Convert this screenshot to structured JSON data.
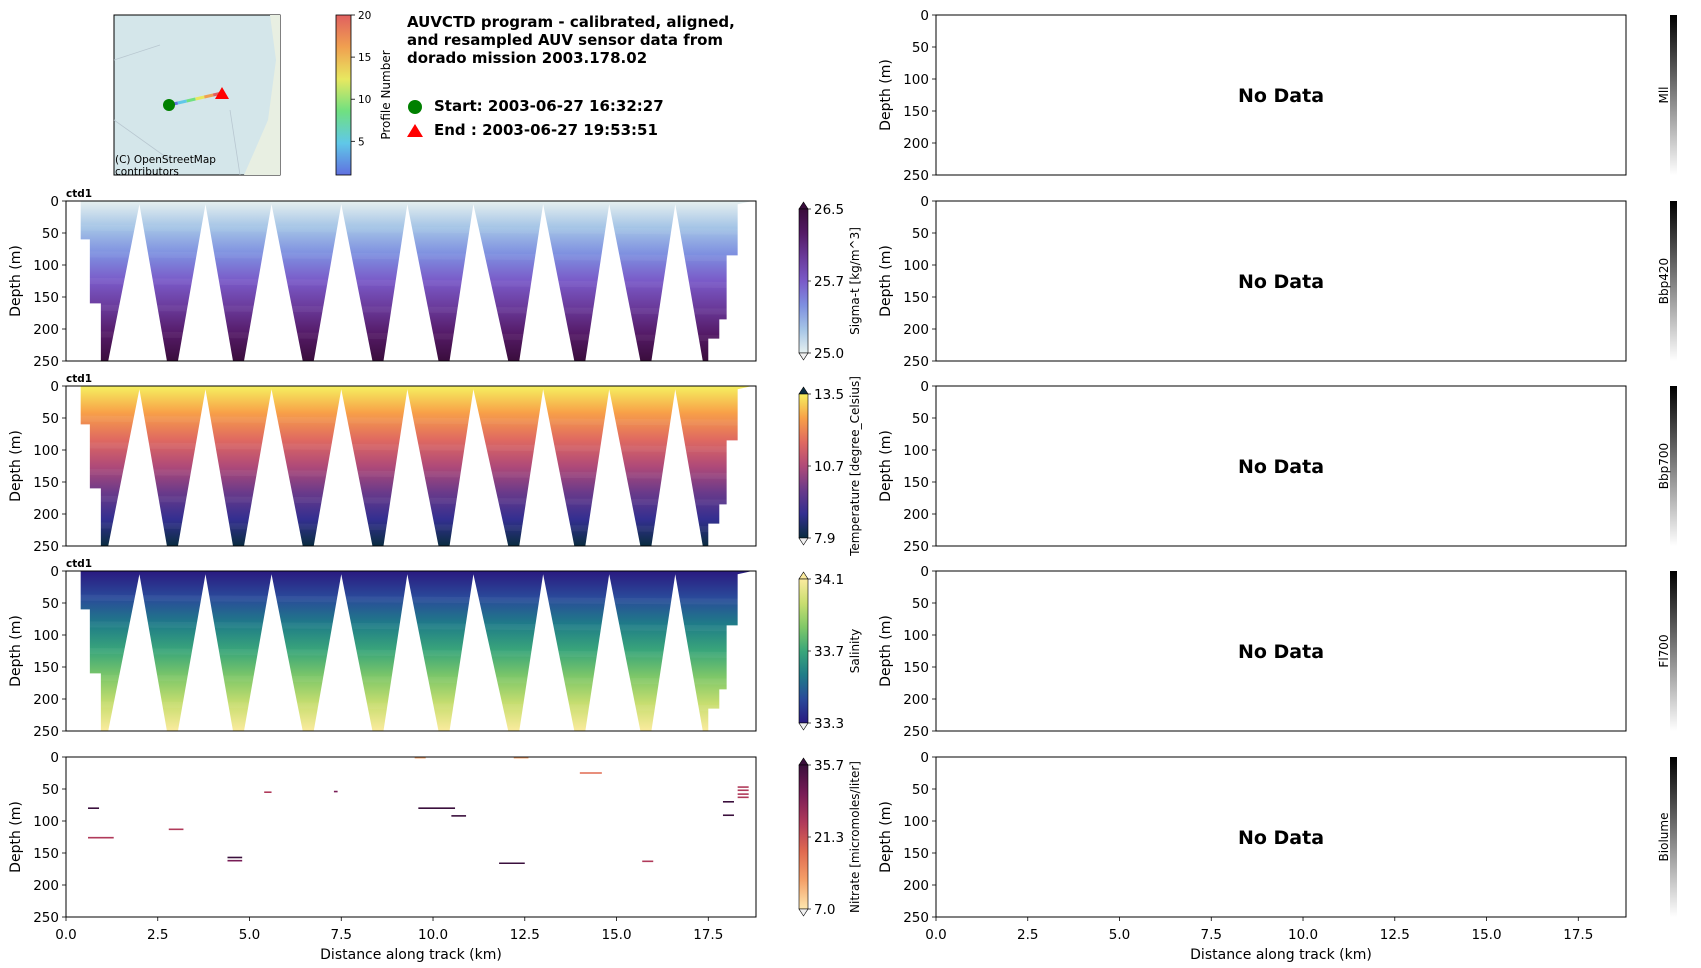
{
  "header": {
    "title_lines": [
      "AUVCTD program - calibrated, aligned,",
      "and resampled AUV sensor data from",
      "dorado mission 2003.178.02"
    ],
    "start_text": "Start: 2003-06-27 16:32:27",
    "end_text": "End  : 2003-06-27 19:53:51"
  },
  "map": {
    "attribution_lines": [
      "(C) OpenStreetMap",
      "contributors"
    ],
    "start_color": "#008000",
    "end_color": "#ff0000"
  },
  "profile_colorbar": {
    "label": "Profile Number",
    "ticks": [
      "5",
      "10",
      "15",
      "20"
    ]
  },
  "common": {
    "ylabel": "Depth (m)",
    "xlabel": "Distance along track (km)",
    "y_ticks": [
      "0",
      "50",
      "100",
      "150",
      "200",
      "250"
    ],
    "x_ticks": [
      "0.0",
      "2.5",
      "5.0",
      "7.5",
      "10.0",
      "12.5",
      "15.0",
      "17.5"
    ],
    "no_data_text": "No Data"
  },
  "chart_data": [
    {
      "type": "heatmap",
      "source": "ctd1",
      "variable": "Sigma-t [kg/m^3]",
      "xlim": [
        0,
        18.8
      ],
      "ylim": [
        250,
        0
      ],
      "colorbar_ticks": [
        "26.5",
        "25.7",
        "25.0"
      ],
      "colormap": "dense",
      "colors": [
        "#e6f0f0",
        "#a4c4e6",
        "#7e8fe0",
        "#7a5ac8",
        "#6a3a9a",
        "#541a66",
        "#3a0d3c"
      ]
    },
    {
      "type": "heatmap",
      "source": "ctd1",
      "variable": "Temperature [degree_Celsius]",
      "xlim": [
        0,
        18.8
      ],
      "ylim": [
        250,
        0
      ],
      "colorbar_ticks": [
        "13.5",
        "10.7",
        "7.9"
      ],
      "colormap": "thermal",
      "colors": [
        "#f5f060",
        "#f8a048",
        "#e06a60",
        "#b04a78",
        "#6a3a8a",
        "#332f90",
        "#0a2d40"
      ]
    },
    {
      "type": "heatmap",
      "source": "ctd1",
      "variable": "Salinity",
      "xlim": [
        0,
        18.8
      ],
      "ylim": [
        250,
        0
      ],
      "colorbar_ticks": [
        "34.1",
        "33.7",
        "33.3"
      ],
      "colormap": "haline",
      "colors": [
        "#fbeb9e",
        "#c9de70",
        "#80c868",
        "#3aa67a",
        "#1f7c88",
        "#2a4a9a",
        "#2a1a80"
      ]
    },
    {
      "type": "heatmap",
      "variable": "Nitrate [micromoles/liter]",
      "xlim": [
        0,
        18.8
      ],
      "ylim": [
        250,
        0
      ],
      "colorbar_ticks": [
        "35.7",
        "21.3",
        "7.0"
      ],
      "colormap": "matter",
      "colors": [
        "#fde8b0",
        "#f4a068",
        "#e06a50",
        "#b03a5a",
        "#781c56",
        "#3a0f3c"
      ]
    },
    {
      "type": "heatmap",
      "variable": "Mll",
      "data": "none",
      "xlim": [
        0,
        18.8
      ],
      "ylim": [
        250,
        0
      ]
    },
    {
      "type": "heatmap",
      "variable": "Bbp420",
      "data": "none",
      "xlim": [
        0,
        18.8
      ],
      "ylim": [
        250,
        0
      ]
    },
    {
      "type": "heatmap",
      "variable": "Bbp700",
      "data": "none",
      "xlim": [
        0,
        18.8
      ],
      "ylim": [
        250,
        0
      ]
    },
    {
      "type": "heatmap",
      "variable": "Fl700",
      "data": "none",
      "xlim": [
        0,
        18.8
      ],
      "ylim": [
        250,
        0
      ]
    },
    {
      "type": "heatmap",
      "variable": "Biolume",
      "data": "none",
      "xlim": [
        0,
        18.8
      ],
      "ylim": [
        250,
        0
      ]
    }
  ],
  "track": {
    "turn_x_bottom": [
      1.0,
      2.9,
      4.7,
      6.6,
      8.5,
      10.3,
      12.2,
      14.0,
      15.8,
      17.5
    ],
    "turn_x_top": [
      2.0,
      3.8,
      5.6,
      7.5,
      9.3,
      11.1,
      13.0,
      14.8,
      16.6
    ]
  },
  "nitrate_segments": [
    {
      "x0": 0.6,
      "x1": 0.9,
      "y": 80,
      "c": 5
    },
    {
      "x0": 0.6,
      "x1": 1.3,
      "y": 126,
      "c": 3
    },
    {
      "x0": 2.8,
      "x1": 3.2,
      "y": 113,
      "c": 3
    },
    {
      "x0": 4.4,
      "x1": 4.8,
      "y": 157,
      "c": 5
    },
    {
      "x0": 4.4,
      "x1": 4.8,
      "y": 162,
      "c": 4
    },
    {
      "x0": 5.4,
      "x1": 5.6,
      "y": 55,
      "c": 3
    },
    {
      "x0": 7.3,
      "x1": 7.4,
      "y": 54,
      "c": 4
    },
    {
      "x0": 9.6,
      "x1": 10.6,
      "y": 80,
      "c": 5
    },
    {
      "x0": 10.5,
      "x1": 10.9,
      "y": 92,
      "c": 5
    },
    {
      "x0": 11.8,
      "x1": 12.5,
      "y": 166,
      "c": 5
    },
    {
      "x0": 14.0,
      "x1": 14.6,
      "y": 25,
      "c": 2
    },
    {
      "x0": 15.7,
      "x1": 16.0,
      "y": 163,
      "c": 3
    },
    {
      "x0": 17.9,
      "x1": 18.2,
      "y": 70,
      "c": 5
    },
    {
      "x0": 17.9,
      "x1": 18.2,
      "y": 91,
      "c": 5
    },
    {
      "x0": 18.3,
      "x1": 18.6,
      "y": 47,
      "c": 3
    },
    {
      "x0": 18.3,
      "x1": 18.6,
      "y": 52,
      "c": 3
    },
    {
      "x0": 18.3,
      "x1": 18.6,
      "y": 58,
      "c": 3
    },
    {
      "x0": 18.3,
      "x1": 18.6,
      "y": 63,
      "c": 3
    },
    {
      "x0": 9.5,
      "x1": 9.8,
      "y": 1,
      "c": 1
    },
    {
      "x0": 12.2,
      "x1": 12.6,
      "y": 1,
      "c": 1
    }
  ]
}
